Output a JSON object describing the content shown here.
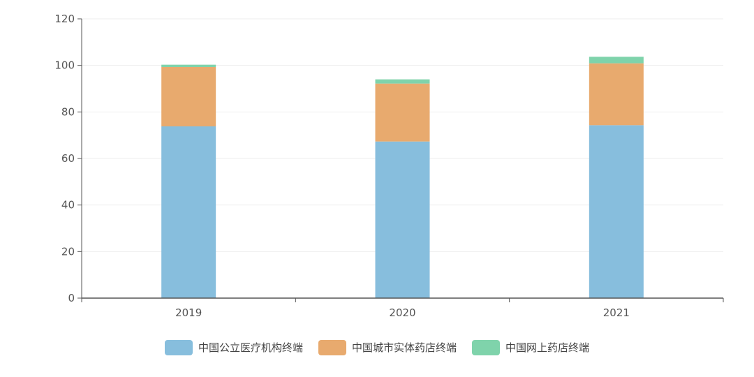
{
  "chart_data": {
    "type": "bar",
    "stacked": true,
    "categories": [
      "2019",
      "2020",
      "2021"
    ],
    "series": [
      {
        "name": "中国公立医疗机构终端",
        "values": [
          73.8,
          67.3,
          74.3
        ],
        "color": "#87bedd"
      },
      {
        "name": "中国城市实体药店终端",
        "values": [
          25.5,
          24.9,
          26.6
        ],
        "color": "#e8aa6e"
      },
      {
        "name": "中国网上药店终端",
        "values": [
          1.0,
          1.8,
          2.8
        ],
        "color": "#7fd3ab"
      }
    ],
    "y_ticks": [
      "0",
      "20",
      "40",
      "60",
      "80",
      "100",
      "120"
    ],
    "ylim": [
      0,
      120
    ],
    "grid": true,
    "legend_position": "bottom-center"
  }
}
